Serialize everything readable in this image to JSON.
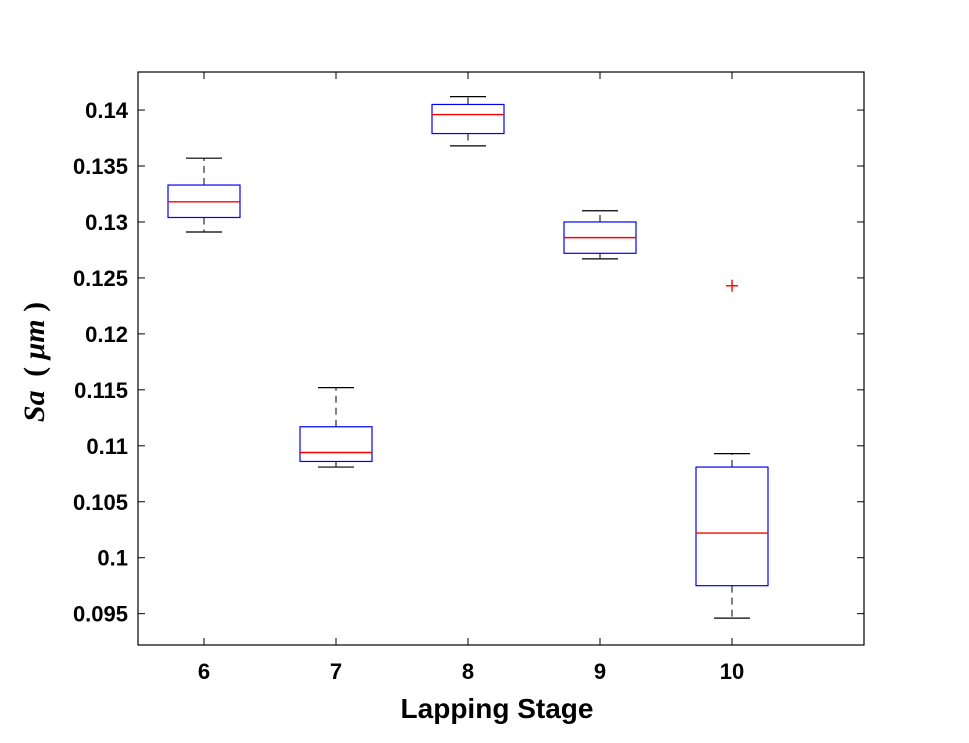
{
  "chart_data": {
    "type": "box",
    "xlabel": "Lapping Stage",
    "ylabel": "Sa (μm)",
    "ylabel_parts": {
      "var": "Sa",
      "open": "(",
      "unit": "μm",
      "close": ")"
    },
    "categories": [
      "6",
      "7",
      "8",
      "9",
      "10"
    ],
    "ylim": [
      0.0922,
      0.1434
    ],
    "yticks": [
      0.095,
      0.1,
      0.105,
      0.11,
      0.115,
      0.12,
      0.125,
      0.13,
      0.135,
      0.14
    ],
    "ytick_labels": [
      "0.095",
      "0.1",
      "0.105",
      "0.11",
      "0.115",
      "0.12",
      "0.125",
      "0.13",
      "0.135",
      "0.14"
    ],
    "boxes": [
      {
        "category": "6",
        "whisker_low": 0.1291,
        "q1": 0.1304,
        "median": 0.1318,
        "q3": 0.1333,
        "whisker_high": 0.1357,
        "outliers": []
      },
      {
        "category": "7",
        "whisker_low": 0.1081,
        "q1": 0.1086,
        "median": 0.1094,
        "q3": 0.1117,
        "whisker_high": 0.1152,
        "outliers": []
      },
      {
        "category": "8",
        "whisker_low": 0.1368,
        "q1": 0.1379,
        "median": 0.1396,
        "q3": 0.1405,
        "whisker_high": 0.1412,
        "outliers": []
      },
      {
        "category": "9",
        "whisker_low": 0.1267,
        "q1": 0.1272,
        "median": 0.1286,
        "q3": 0.13,
        "whisker_high": 0.131,
        "outliers": []
      },
      {
        "category": "10",
        "whisker_low": 0.0946,
        "q1": 0.0975,
        "median": 0.1022,
        "q3": 0.1081,
        "whisker_high": 0.1093,
        "outliers": [
          0.1243
        ]
      }
    ],
    "grid": false,
    "legend": "none",
    "colors": {
      "box": "#0000ff",
      "median": "#ff0000",
      "whisker": "#000000",
      "outlier": "#ff0000"
    }
  }
}
